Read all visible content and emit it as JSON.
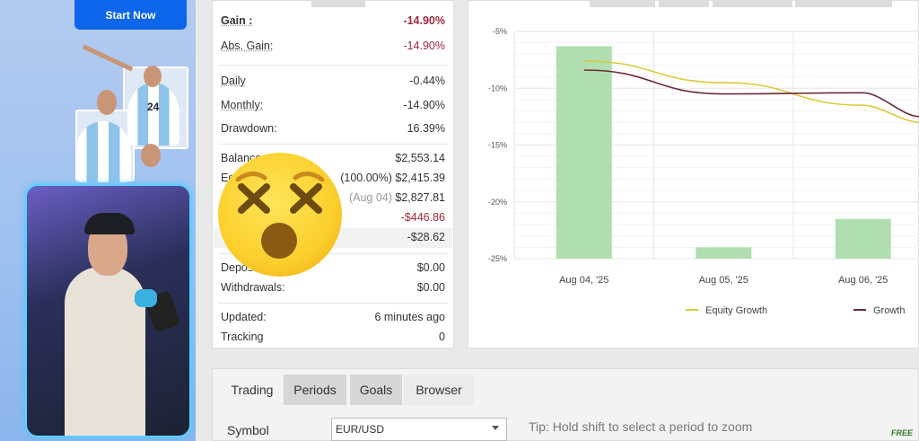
{
  "sidebar": {
    "start_button": "Start Now",
    "player_number": "24"
  },
  "stats": {
    "gain": {
      "label": "Gain :",
      "value": "-14.90%"
    },
    "abs_gain": {
      "label": "Abs. Gain:",
      "value": "-14.90%"
    },
    "daily": {
      "label": "Daily",
      "value": "-0.44%"
    },
    "monthly": {
      "label": "Monthly:",
      "value": "-14.90%"
    },
    "drawdown": {
      "label": "Drawdown:",
      "value": "16.39%"
    },
    "balance": {
      "label": "Balance:",
      "value": "$2,553.14"
    },
    "equity": {
      "label": "Equity:",
      "note": "(100.00%)",
      "value": "$2,415.39"
    },
    "highest": {
      "note": "(Aug 04)",
      "value": "$2,827.81"
    },
    "profit": {
      "value": "-$446.86"
    },
    "interest": {
      "value": "-$28.62"
    },
    "deposits": {
      "label": "Deposits:",
      "value": "$0.00"
    },
    "withdrawals": {
      "label": "Withdrawals:",
      "value": "$0.00"
    },
    "updated": {
      "label": "Updated:",
      "value": "6 minutes ago"
    },
    "tracking": {
      "label": "Tracking",
      "value": "0"
    }
  },
  "chart_data": {
    "type": "bar",
    "categories": [
      "Aug 04, '25",
      "Aug 05, '25",
      "Aug 06, '25"
    ],
    "ylim": [
      -25,
      -5
    ],
    "yticks": [
      "-5%",
      "-10%",
      "-15%",
      "-20%",
      "-25%"
    ],
    "grid": true,
    "bar_color": "#b1deb0",
    "values": [
      -6.3,
      -24.0,
      -21.5
    ],
    "series": [
      {
        "name": "Equity Growth",
        "type": "line",
        "color": "#d8cc3a",
        "values": [
          -7.6,
          -9.5,
          -11.5
        ],
        "last": -13.0
      },
      {
        "name": "Growth",
        "type": "line",
        "color": "#6b2a36",
        "values": [
          -8.4,
          -10.5,
          -10.4
        ],
        "last": -12.5
      }
    ],
    "legend": "bottom"
  },
  "bottom": {
    "tabs": [
      "Trading",
      "Periods",
      "Goals",
      "Browser"
    ],
    "symbol_label": "Symbol",
    "symbol_value": "EUR/USD",
    "tip": "Tip: Hold shift to select a period to zoom",
    "badge": "FREE"
  }
}
